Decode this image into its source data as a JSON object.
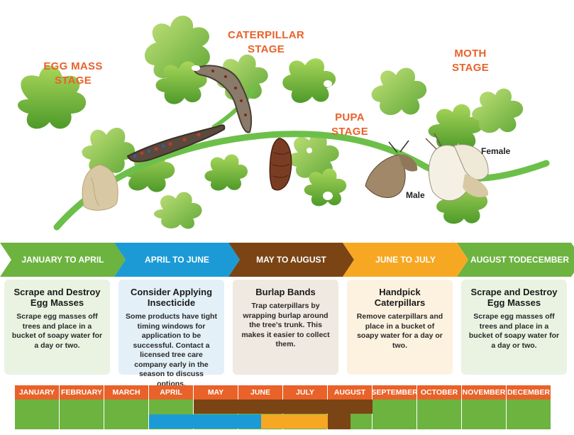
{
  "stages": {
    "egg_mass": [
      "EGG MASS",
      "STAGE"
    ],
    "caterpillar": [
      "CATERPILLAR",
      "STAGE"
    ],
    "pupa": [
      "PUPA",
      "STAGE"
    ],
    "moth": [
      "MOTH",
      "STAGE"
    ],
    "female_label": "Female",
    "male_label": "Male"
  },
  "timeline": [
    {
      "period": "JANUARY TO APRIL",
      "period_lines": [
        "JANUARY TO APRIL"
      ],
      "color": "#6cb33f",
      "card_bg": "#eaf3e2",
      "title_lines": [
        "Scrape and Destroy",
        "Egg Masses"
      ],
      "body": "Scrape egg masses off trees and place in a bucket of soapy water for a day or two."
    },
    {
      "period": "APRIL TO JUNE",
      "period_lines": [
        "APRIL TO JUNE"
      ],
      "color": "#1b9ad6",
      "card_bg": "#e3f0f8",
      "title_lines": [
        "Consider Applying",
        "Insecticide"
      ],
      "body": "Some products have tight timing windows for application to be successful. Contact a licensed tree care company early in the season to discuss options."
    },
    {
      "period": "MAY TO AUGUST",
      "period_lines": [
        "MAY TO AUGUST"
      ],
      "color": "#7b4414",
      "card_bg": "#f0e9e1",
      "title_lines": [
        "Burlap Bands"
      ],
      "body": "Trap caterpillars by wrapping burlap around the tree's trunk. This makes it easier to collect them."
    },
    {
      "period": "JUNE TO JULY",
      "period_lines": [
        "JUNE TO JULY"
      ],
      "color": "#f7a823",
      "card_bg": "#fdf2df",
      "title_lines": [
        "Handpick",
        "Caterpillars"
      ],
      "body": "Remove caterpillars and place in a bucket of soapy water for a day or two."
    },
    {
      "period": "AUGUST TO DECEMBER",
      "period_lines": [
        "AUGUST TO",
        "DECEMBER"
      ],
      "color": "#6cb33f",
      "card_bg": "#eaf3e2",
      "title_lines": [
        "Scrape and Destroy",
        "Egg Masses"
      ],
      "body": "Scrape egg masses off trees and place in a bucket of soapy water for a day or two."
    }
  ],
  "calendar": {
    "months": [
      "JANUARY",
      "FEBRUARY",
      "MARCH",
      "APRIL",
      "MAY",
      "JUNE",
      "JULY",
      "AUGUST",
      "SEPTEMBER",
      "OCTOBER",
      "NOVEMBER",
      "DECEMBER"
    ],
    "header_color": "#e8622a",
    "bars": [
      {
        "activity": "Scrape and Destroy Egg Masses",
        "color": "#6cb33f",
        "start_month": 0,
        "end_month": 4
      },
      {
        "activity": "Consider Applying Insecticide",
        "color": "#1b9ad6",
        "start_month": 3,
        "end_month": 5.5
      },
      {
        "activity": "Burlap Bands",
        "color": "#7b4414",
        "start_month": 4,
        "end_month": 8
      },
      {
        "activity": "Handpick Caterpillars",
        "color": "#f7a823",
        "start_month": 5.5,
        "end_month": 7
      },
      {
        "activity": "Scrape and Destroy Egg Masses",
        "color": "#6cb33f",
        "start_month": 7.5,
        "end_month": 12
      }
    ]
  }
}
